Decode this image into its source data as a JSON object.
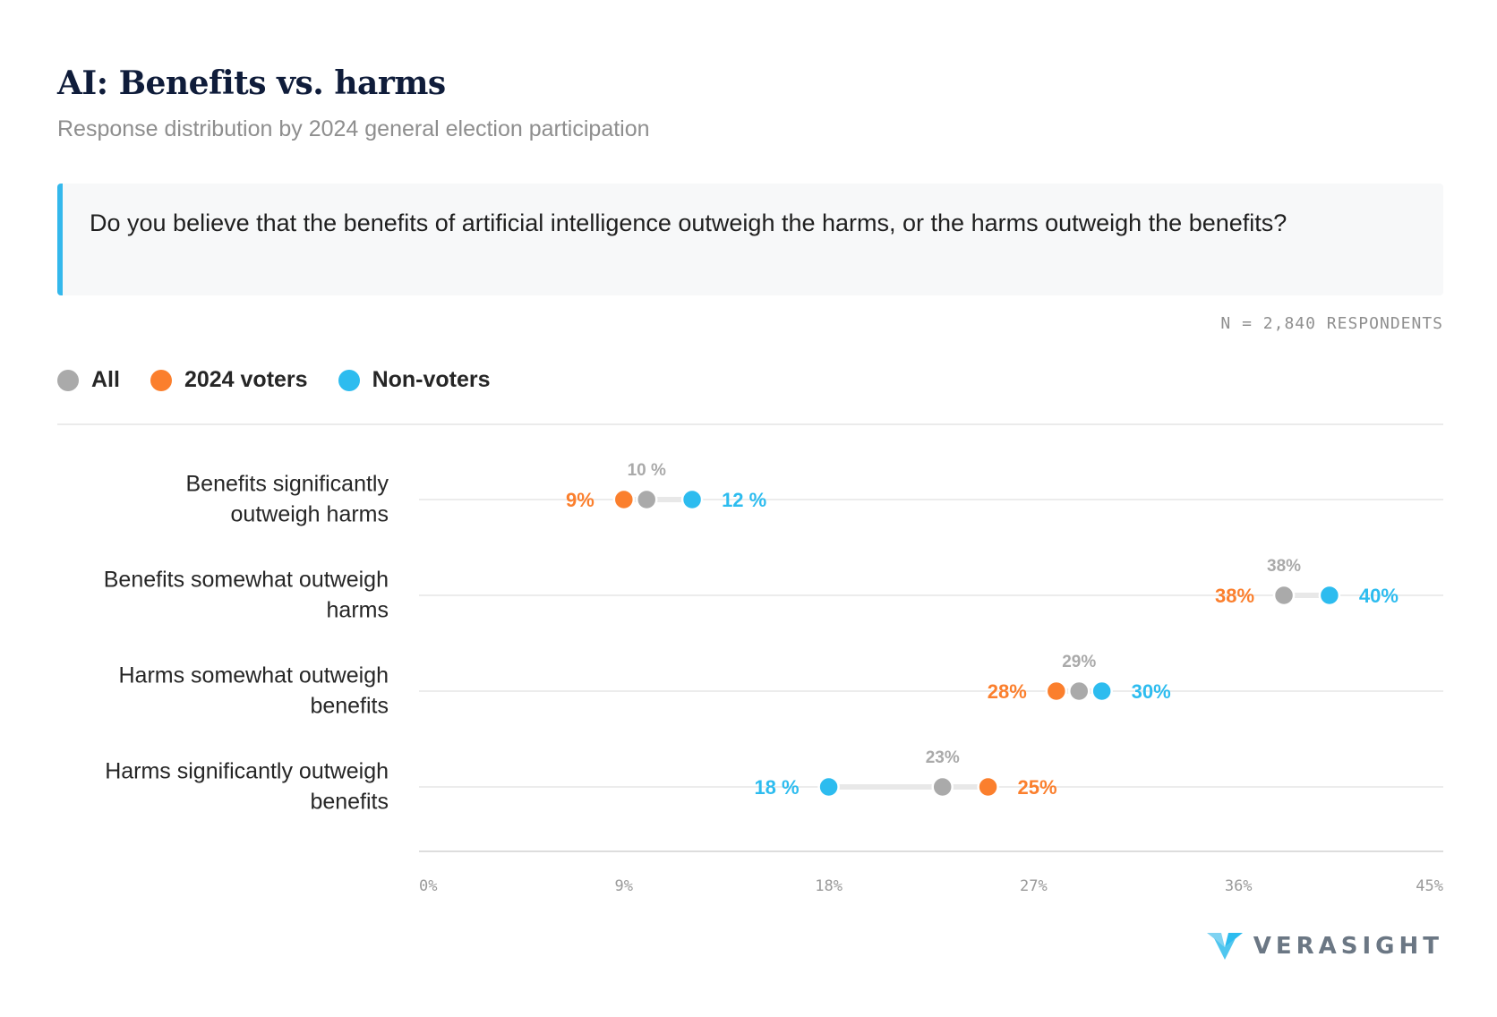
{
  "header": {
    "title": "AI: Benefits vs. harms",
    "subtitle": "Response distribution by 2024 general election participation"
  },
  "question": "Do you believe that the benefits of artificial intelligence outweigh the harms, or the harms outweigh the benefits?",
  "sample_note": "N = 2,840 RESPONDENTS",
  "legend": [
    {
      "label": "All",
      "color": "#aaaaaa"
    },
    {
      "label": "2024 voters",
      "color": "#fb7f2d"
    },
    {
      "label": "Non-voters",
      "color": "#2dbcef"
    }
  ],
  "chart_data": {
    "type": "dot-plot",
    "title": "AI: Benefits vs. harms",
    "x_ticks": [
      "0%",
      "9%",
      "18%",
      "27%",
      "36%",
      "45%"
    ],
    "x_range": [
      0,
      45
    ],
    "categories": [
      "Benefits significantly outweigh harms",
      "Benefits somewhat outweigh harms",
      "Harms somewhat outweigh benefits",
      "Harms significantly outweigh benefits"
    ],
    "series": [
      {
        "name": "All",
        "color": "#aaaaaa",
        "values": [
          10,
          38,
          29,
          23
        ],
        "labels": [
          "10 %",
          "38%",
          "29%",
          "23%"
        ]
      },
      {
        "name": "2024 voters",
        "color": "#fb7f2d",
        "values": [
          9,
          38,
          28,
          25
        ],
        "labels": [
          "9%",
          "38%",
          "28%",
          "25%"
        ]
      },
      {
        "name": "Non-voters",
        "color": "#2dbcef",
        "values": [
          12,
          40,
          30,
          18
        ],
        "labels": [
          "12 %",
          "40%",
          "30%",
          "18 %"
        ]
      }
    ]
  },
  "brand": {
    "name": "VERASIGHT",
    "icon": "verasight-logo-icon"
  }
}
